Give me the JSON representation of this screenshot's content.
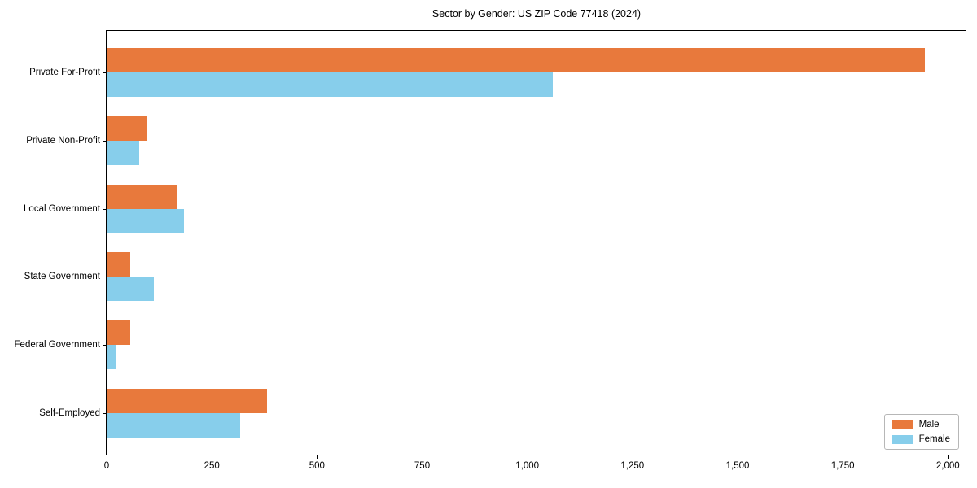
{
  "chart_data": {
    "type": "bar",
    "orientation": "horizontal",
    "title": "Sector by Gender: US ZIP Code 77418 (2024)",
    "categories": [
      "Private For-Profit",
      "Private Non-Profit",
      "Local Government",
      "State Government",
      "Federal Government",
      "Self-Employed"
    ],
    "series": [
      {
        "name": "Male",
        "color": "#e8793c",
        "values": [
          1945,
          95,
          168,
          57,
          56,
          382
        ]
      },
      {
        "name": "Female",
        "color": "#87ceeb",
        "values": [
          1060,
          78,
          184,
          113,
          21,
          317
        ]
      }
    ],
    "xlim": [
      0,
      2042
    ],
    "xticks": [
      0,
      250,
      500,
      750,
      1000,
      1250,
      1500,
      1750,
      2000
    ],
    "xtick_labels": [
      "0",
      "250",
      "500",
      "750",
      "1,000",
      "1,250",
      "1,500",
      "1,750",
      "2,000"
    ],
    "ylabel": "",
    "xlabel": "",
    "grid": false,
    "legend_position": "lower right",
    "axis_color": "#000000",
    "background_color": "#ffffff"
  }
}
